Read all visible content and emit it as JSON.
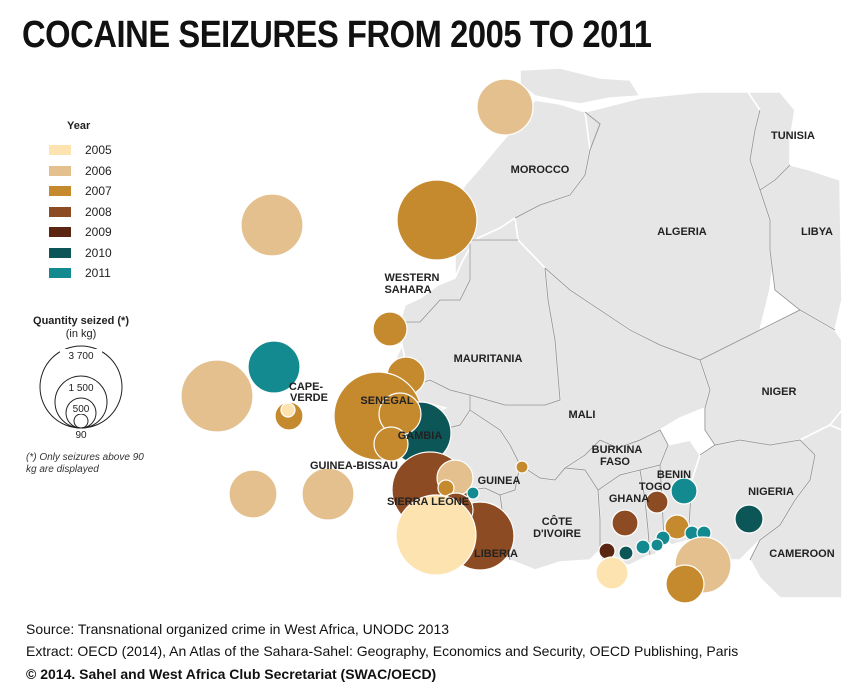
{
  "title": "COCAINE SEIZURES FROM 2005 TO 2011",
  "legend": {
    "year_title": "Year",
    "years": [
      {
        "label": "2005",
        "color": "#fde3b0"
      },
      {
        "label": "2006",
        "color": "#e3c08e"
      },
      {
        "label": "2007",
        "color": "#c68a2e"
      },
      {
        "label": "2008",
        "color": "#8c4b22"
      },
      {
        "label": "2009",
        "color": "#5a2612"
      },
      {
        "label": "2010",
        "color": "#0d5657"
      },
      {
        "label": "2011",
        "color": "#138a8f"
      }
    ]
  },
  "quantity_legend": {
    "title": "Quantity seized (*)",
    "unit": "(in kg)",
    "values": [
      "3 700",
      "1 500",
      "500",
      "90"
    ],
    "note": "(*) Only seizures above 90 kg are displayed"
  },
  "countries": [
    {
      "name": "MOROCCO"
    },
    {
      "name": "ALGERIA"
    },
    {
      "name": "TUNISIA"
    },
    {
      "name": "LIBYA"
    },
    {
      "name": "WESTERN",
      "name2": "SAHARA"
    },
    {
      "name": "MAURITANIA"
    },
    {
      "name": "MALI"
    },
    {
      "name": "NIGER"
    },
    {
      "name": "CAPE-",
      "name2": "VERDE"
    },
    {
      "name": "SENEGAL"
    },
    {
      "name": "GAMBIA"
    },
    {
      "name": "GUINEA-BISSAU"
    },
    {
      "name": "GUINEA"
    },
    {
      "name": "SIERRA LEONE"
    },
    {
      "name": "LIBERIA"
    },
    {
      "name": "CÔTE",
      "name2": "D'IVOIRE"
    },
    {
      "name": "BURKINA",
      "name2": "FASO"
    },
    {
      "name": "GHANA"
    },
    {
      "name": "TOGO"
    },
    {
      "name": "BENIN"
    },
    {
      "name": "NIGERIA"
    },
    {
      "name": "CAMEROON"
    }
  ],
  "footer": {
    "source": "Source: Transnational organized crime in West Africa, UNODC 2013",
    "extract": "Extract: OECD (2014), An Atlas of the Sahara-Sahel: Geography, Economics  and Security, OECD Publishing, Paris",
    "copyright": "© 2014. Sahel and West Africa Club Secretariat (SWAC/OECD)"
  }
}
